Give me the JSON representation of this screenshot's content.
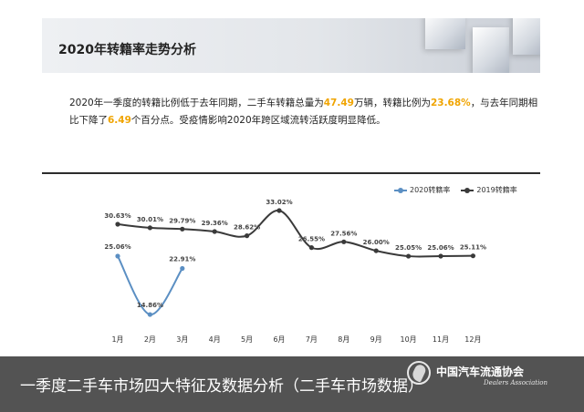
{
  "banner": {
    "title": "2020年转籍率走势分析"
  },
  "summary": {
    "seg1": "2020年一季度的转籍比例低于去年同期，二手车转籍总量为",
    "total": "47.49",
    "seg2": "万辆，转籍比例为",
    "ratio": "23.68%",
    "seg3": "，与去年同期相比下降了",
    "drop": "6.49",
    "seg4": "个百分点。受疫情影响2020年跨区域流转活跃度明显降低。"
  },
  "caption": {
    "text": "一季度二手车市场四大特征及数据分析（二手车市场数据）",
    "assoc_cn": "中国汽车流通协会",
    "assoc_en": "Dealers Association"
  },
  "colors": {
    "s2020": "#5b8fc3",
    "s2019": "#3a3a3a",
    "highlight": "#f0a400"
  },
  "chart_data": {
    "type": "line",
    "categories": [
      "1月",
      "2月",
      "3月",
      "4月",
      "5月",
      "6月",
      "7月",
      "8月",
      "9月",
      "10月",
      "11月",
      "12月"
    ],
    "series": [
      {
        "name": "2020转籍率",
        "values": [
          25.06,
          14.86,
          22.91,
          null,
          null,
          null,
          null,
          null,
          null,
          null,
          null,
          null
        ]
      },
      {
        "name": "2019转籍率",
        "values": [
          30.63,
          30.01,
          29.79,
          29.36,
          28.62,
          33.02,
          26.55,
          27.56,
          26.0,
          25.05,
          25.06,
          25.11
        ]
      }
    ],
    "labels_2020": [
      "25.06%",
      "14.86%",
      "22.91%"
    ],
    "labels_2019": [
      "30.63%",
      "30.01%",
      "29.79%",
      "29.36%",
      "28.62%",
      "33.02%",
      "26.55%",
      "27.56%",
      "26.00%",
      "25.05%",
      "25.06%",
      "25.11%"
    ],
    "grid": false,
    "legend": "top-right"
  }
}
